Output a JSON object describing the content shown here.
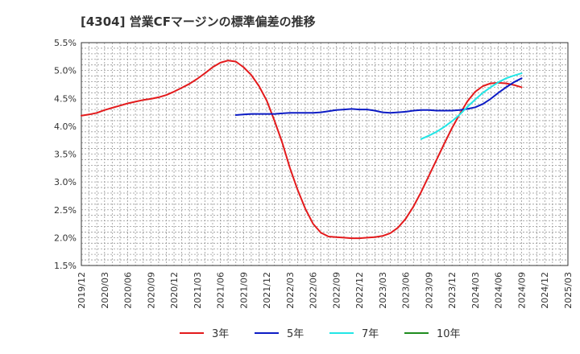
{
  "chart_data": {
    "type": "line",
    "title": "[4304]  営業CFマージンの標準偏差の推移",
    "xlabel": "",
    "ylabel": "",
    "x_start": "2019/12",
    "x_end": "2025/03",
    "ylim": [
      1.5,
      5.5
    ],
    "y_ticks": [
      "1.5%",
      "2.0%",
      "2.5%",
      "3.0%",
      "3.5%",
      "4.0%",
      "4.5%",
      "5.0%",
      "5.5%"
    ],
    "x_ticks": [
      "2019/12",
      "2020/03",
      "2020/06",
      "2020/09",
      "2020/12",
      "2021/03",
      "2021/06",
      "2021/09",
      "2021/12",
      "2022/03",
      "2022/06",
      "2022/09",
      "2022/12",
      "2023/03",
      "2023/06",
      "2023/09",
      "2023/12",
      "2024/03",
      "2024/06",
      "2024/09",
      "2024/12",
      "2025/03"
    ],
    "grid": true,
    "legend_position": "bottom",
    "series": [
      {
        "name": "3年",
        "color": "#e31a1c",
        "points": [
          [
            "2019/12",
            4.19
          ],
          [
            "2020/01",
            4.21
          ],
          [
            "2020/02",
            4.24
          ],
          [
            "2020/03",
            4.29
          ],
          [
            "2020/04",
            4.33
          ],
          [
            "2020/05",
            4.37
          ],
          [
            "2020/06",
            4.41
          ],
          [
            "2020/07",
            4.44
          ],
          [
            "2020/08",
            4.47
          ],
          [
            "2020/09",
            4.49
          ],
          [
            "2020/10",
            4.52
          ],
          [
            "2020/11",
            4.56
          ],
          [
            "2020/12",
            4.62
          ],
          [
            "2021/01",
            4.69
          ],
          [
            "2021/02",
            4.76
          ],
          [
            "2021/03",
            4.85
          ],
          [
            "2021/04",
            4.95
          ],
          [
            "2021/05",
            5.06
          ],
          [
            "2021/06",
            5.14
          ],
          [
            "2021/07",
            5.18
          ],
          [
            "2021/08",
            5.16
          ],
          [
            "2021/09",
            5.06
          ],
          [
            "2021/10",
            4.92
          ],
          [
            "2021/11",
            4.72
          ],
          [
            "2021/12",
            4.46
          ],
          [
            "2022/01",
            4.1
          ],
          [
            "2022/02",
            3.71
          ],
          [
            "2022/03",
            3.25
          ],
          [
            "2022/04",
            2.86
          ],
          [
            "2022/05",
            2.52
          ],
          [
            "2022/06",
            2.25
          ],
          [
            "2022/07",
            2.09
          ],
          [
            "2022/08",
            2.02
          ],
          [
            "2022/09",
            2.01
          ],
          [
            "2022/10",
            2.0
          ],
          [
            "2022/11",
            1.99
          ],
          [
            "2022/12",
            1.99
          ],
          [
            "2023/01",
            2.0
          ],
          [
            "2023/02",
            2.01
          ],
          [
            "2023/03",
            2.03
          ],
          [
            "2023/04",
            2.08
          ],
          [
            "2023/05",
            2.18
          ],
          [
            "2023/06",
            2.34
          ],
          [
            "2023/07",
            2.56
          ],
          [
            "2023/08",
            2.82
          ],
          [
            "2023/09",
            3.11
          ],
          [
            "2023/10",
            3.4
          ],
          [
            "2023/11",
            3.69
          ],
          [
            "2023/12",
            3.97
          ],
          [
            "2024/01",
            4.22
          ],
          [
            "2024/02",
            4.45
          ],
          [
            "2024/03",
            4.62
          ],
          [
            "2024/04",
            4.72
          ],
          [
            "2024/05",
            4.77
          ],
          [
            "2024/06",
            4.78
          ],
          [
            "2024/07",
            4.77
          ],
          [
            "2024/08",
            4.74
          ],
          [
            "2024/09",
            4.7
          ]
        ]
      },
      {
        "name": "5年",
        "color": "#0d1cc5",
        "points": [
          [
            "2021/08",
            4.2
          ],
          [
            "2021/09",
            4.21
          ],
          [
            "2021/10",
            4.22
          ],
          [
            "2021/11",
            4.22
          ],
          [
            "2021/12",
            4.22
          ],
          [
            "2022/01",
            4.22
          ],
          [
            "2022/02",
            4.23
          ],
          [
            "2022/03",
            4.24
          ],
          [
            "2022/04",
            4.24
          ],
          [
            "2022/05",
            4.24
          ],
          [
            "2022/06",
            4.24
          ],
          [
            "2022/07",
            4.25
          ],
          [
            "2022/08",
            4.27
          ],
          [
            "2022/09",
            4.29
          ],
          [
            "2022/10",
            4.3
          ],
          [
            "2022/11",
            4.31
          ],
          [
            "2022/12",
            4.3
          ],
          [
            "2023/01",
            4.3
          ],
          [
            "2023/02",
            4.28
          ],
          [
            "2023/03",
            4.25
          ],
          [
            "2023/04",
            4.24
          ],
          [
            "2023/05",
            4.25
          ],
          [
            "2023/06",
            4.26
          ],
          [
            "2023/07",
            4.28
          ],
          [
            "2023/08",
            4.29
          ],
          [
            "2023/09",
            4.29
          ],
          [
            "2023/10",
            4.28
          ],
          [
            "2023/11",
            4.28
          ],
          [
            "2023/12",
            4.28
          ],
          [
            "2024/01",
            4.29
          ],
          [
            "2024/02",
            4.31
          ],
          [
            "2024/03",
            4.34
          ],
          [
            "2024/04",
            4.4
          ],
          [
            "2024/05",
            4.49
          ],
          [
            "2024/06",
            4.6
          ],
          [
            "2024/07",
            4.7
          ],
          [
            "2024/08",
            4.79
          ],
          [
            "2024/09",
            4.86
          ]
        ]
      },
      {
        "name": "7年",
        "color": "#22e6e6",
        "points": [
          [
            "2023/08",
            3.77
          ],
          [
            "2023/09",
            3.83
          ],
          [
            "2023/10",
            3.9
          ],
          [
            "2023/11",
            3.99
          ],
          [
            "2023/12",
            4.09
          ],
          [
            "2024/01",
            4.21
          ],
          [
            "2024/02",
            4.35
          ],
          [
            "2024/03",
            4.48
          ],
          [
            "2024/04",
            4.6
          ],
          [
            "2024/05",
            4.7
          ],
          [
            "2024/06",
            4.79
          ],
          [
            "2024/07",
            4.86
          ],
          [
            "2024/08",
            4.91
          ],
          [
            "2024/09",
            4.95
          ]
        ]
      },
      {
        "name": "10年",
        "color": "#1e8c1e",
        "points": []
      }
    ]
  }
}
